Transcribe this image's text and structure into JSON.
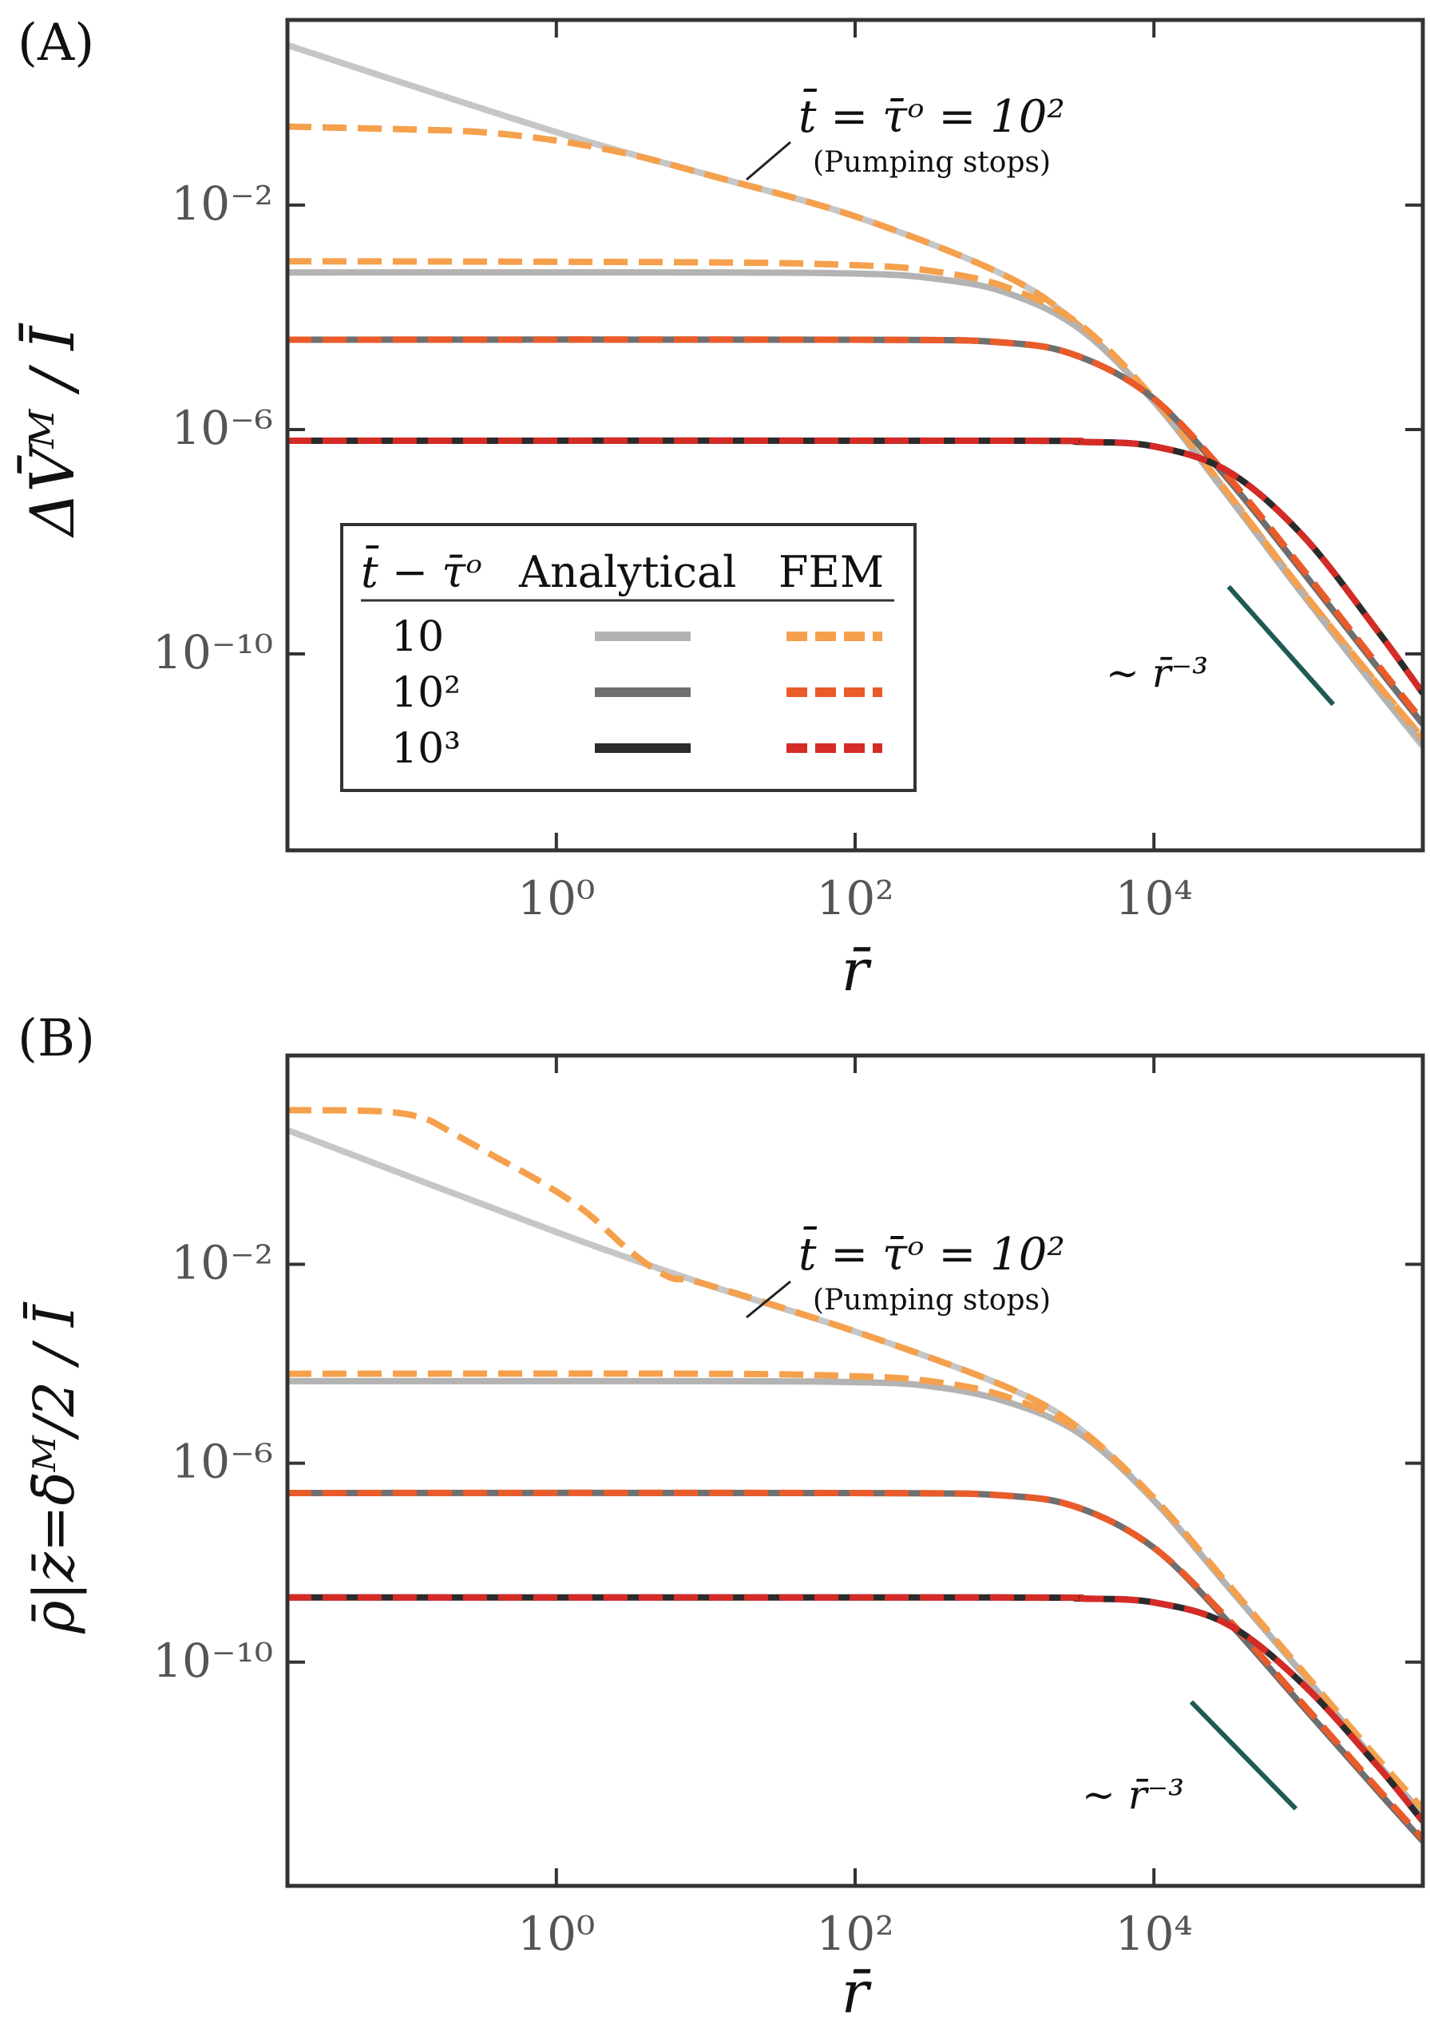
{
  "figure": {
    "panels": [
      {
        "id": "A",
        "label": "(A)"
      },
      {
        "id": "B",
        "label": "(B)"
      }
    ]
  },
  "chart_data": [
    {
      "id": "A",
      "type": "line",
      "title": "",
      "xlabel": "r̄",
      "ylabel": "ΔV̄ᴹ / Ī",
      "xscale": "log",
      "yscale": "log",
      "xlim_log10": [
        -1.8,
        5.8
      ],
      "ylim_log10": [
        -13.5,
        1.3
      ],
      "xticks": [
        {
          "value": 0,
          "label": "10⁰"
        },
        {
          "value": 2,
          "label": "10²"
        },
        {
          "value": 4,
          "label": "10⁴"
        }
      ],
      "yticks": [
        {
          "value": -2,
          "label": "10⁻²"
        },
        {
          "value": -6,
          "label": "10⁻⁶"
        },
        {
          "value": -10,
          "label": "10⁻¹⁰"
        }
      ],
      "annotation": {
        "main": "t̄ = τ̄ᵒ = 10²",
        "sub": "(Pumping stops)"
      },
      "slope": {
        "label": "∼ r̄⁻³",
        "x0": 4.5,
        "y0": -8.8,
        "x1": 5.2,
        "y1": -10.9
      },
      "legend": {
        "position": "lower-left",
        "headers": [
          "t̄ − τ̄ᵒ",
          "Analytical",
          "FEM"
        ],
        "rows": [
          {
            "label": "10",
            "analytical": "#b3b3b3",
            "fem": "#f5a04c"
          },
          {
            "label": "10²",
            "analytical": "#6f6f6f",
            "fem": "#ea5b2a"
          },
          {
            "label": "10³",
            "analytical": "#2b2b2b",
            "fem": "#d52b26"
          }
        ]
      },
      "series": [
        {
          "name": "Analytical, t̄ = τ̄ᵒ = 10²",
          "style": "solid",
          "color": "#c6c6c6",
          "x": [
            -1.8,
            0,
            1,
            2,
            3,
            3.5,
            4,
            4.5,
            5,
            5.5,
            5.8
          ],
          "y": [
            0.85,
            -0.7,
            -1.45,
            -2.2,
            -3.25,
            -4.15,
            -5.5,
            -7.2,
            -8.95,
            -10.65,
            -11.65
          ]
        },
        {
          "name": "FEM, t̄ = τ̄ᵒ = 10²",
          "style": "dashed",
          "color": "#f5a04c",
          "x": [
            -1.8,
            -1,
            -0.5,
            0,
            0.5,
            1,
            2,
            3,
            3.5,
            4,
            4.5,
            5,
            5.5,
            5.8
          ],
          "y": [
            -0.6,
            -0.65,
            -0.7,
            -0.85,
            -1.1,
            -1.45,
            -2.2,
            -3.25,
            -4.15,
            -5.5,
            -7.15,
            -8.9,
            -10.55,
            -11.5
          ]
        },
        {
          "name": "Analytical, t̄ − τ̄ᵒ = 10",
          "style": "solid",
          "color": "#b3b3b3",
          "x": [
            -1.8,
            1,
            2,
            2.5,
            3,
            3.5,
            4,
            4.5,
            5,
            5.5,
            5.8
          ],
          "y": [
            -3.2,
            -3.2,
            -3.22,
            -3.3,
            -3.55,
            -4.2,
            -5.5,
            -7.2,
            -8.95,
            -10.65,
            -11.6
          ]
        },
        {
          "name": "FEM, t̄ − τ̄ᵒ = 10",
          "style": "dashed",
          "color": "#f5a04c",
          "x": [
            -1.8,
            1,
            2,
            2.5,
            3,
            3.5,
            4,
            4.5,
            5,
            5.5,
            5.8
          ],
          "y": [
            -3.0,
            -3.02,
            -3.07,
            -3.17,
            -3.45,
            -4.12,
            -5.45,
            -7.15,
            -8.9,
            -10.55,
            -11.5
          ]
        },
        {
          "name": "Analytical, t̄ − τ̄ᵒ = 10²",
          "style": "solid",
          "color": "#6f6f6f",
          "x": [
            -1.8,
            2,
            3,
            3.5,
            4,
            4.5,
            5,
            5.5,
            5.8
          ],
          "y": [
            -4.4,
            -4.4,
            -4.45,
            -4.7,
            -5.45,
            -6.9,
            -8.55,
            -10.25,
            -11.25
          ]
        },
        {
          "name": "FEM, t̄ − τ̄ᵒ = 10²",
          "style": "dashed",
          "color": "#ea5b2a",
          "x": [
            -1.8,
            2,
            3,
            3.5,
            4,
            4.5,
            5,
            5.5,
            5.8
          ],
          "y": [
            -4.4,
            -4.4,
            -4.45,
            -4.7,
            -5.45,
            -6.85,
            -8.5,
            -10.2,
            -11.2
          ]
        },
        {
          "name": "Analytical, t̄ − τ̄ᵒ = 10³",
          "style": "solid",
          "color": "#2b2b2b",
          "x": [
            -1.8,
            3,
            3.5,
            4,
            4.5,
            5,
            5.5,
            5.8
          ],
          "y": [
            -6.2,
            -6.2,
            -6.22,
            -6.3,
            -6.75,
            -7.9,
            -9.6,
            -10.7
          ]
        },
        {
          "name": "FEM, t̄ − τ̄ᵒ = 10³",
          "style": "dashed",
          "color": "#d52b26",
          "x": [
            -1.8,
            3,
            3.5,
            4,
            4.5,
            5,
            5.5,
            5.8
          ],
          "y": [
            -6.2,
            -6.2,
            -6.22,
            -6.3,
            -6.75,
            -7.9,
            -9.6,
            -10.7
          ]
        }
      ]
    },
    {
      "id": "B",
      "type": "line",
      "title": "",
      "xlabel": "r̄",
      "ylabel": "ρ̄|z̄=δ̄ᴹ/2 / Ī",
      "xscale": "log",
      "yscale": "log",
      "xlim_log10": [
        -1.8,
        5.8
      ],
      "ylim_log10": [
        -14.5,
        2.2
      ],
      "xticks": [
        {
          "value": 0,
          "label": "10⁰"
        },
        {
          "value": 2,
          "label": "10²"
        },
        {
          "value": 4,
          "label": "10⁴"
        }
      ],
      "yticks": [
        {
          "value": -2,
          "label": "10⁻²"
        },
        {
          "value": -6,
          "label": "10⁻⁶"
        },
        {
          "value": -10,
          "label": "10⁻¹⁰"
        }
      ],
      "annotation": {
        "main": "t̄ = τ̄ᵒ = 10²",
        "sub": "(Pumping stops)"
      },
      "slope": {
        "label": "∼ r̄⁻³",
        "x0": 4.25,
        "y0": -10.8,
        "x1": 4.95,
        "y1": -12.95
      },
      "series": [
        {
          "name": "Analytical, t̄ = τ̄ᵒ = 10²",
          "style": "solid",
          "color": "#c6c6c6",
          "x": [
            -1.8,
            0,
            1,
            2,
            3,
            3.5,
            4,
            4.5,
            5,
            5.5,
            5.8
          ],
          "y": [
            0.7,
            -1.35,
            -2.4,
            -3.35,
            -4.45,
            -5.3,
            -6.75,
            -8.5,
            -10.25,
            -12.05,
            -13.1
          ]
        },
        {
          "name": "FEM, t̄ = τ̄ᵒ = 10²",
          "style": "dashed",
          "color": "#f5a04c",
          "x": [
            -1.8,
            -1.2,
            -0.9,
            -0.7,
            -0.4,
            -0.1,
            0.2,
            0.5,
            0.75,
            1,
            2,
            3,
            3.5,
            4,
            4.5,
            5,
            5.5,
            5.8
          ],
          "y": [
            1.1,
            1.08,
            0.95,
            0.65,
            0.15,
            -0.35,
            -0.95,
            -1.75,
            -2.25,
            -2.4,
            -3.35,
            -4.45,
            -5.3,
            -6.7,
            -8.45,
            -10.2,
            -11.95,
            -12.95
          ]
        },
        {
          "name": "Analytical, t̄ − τ̄ᵒ = 10",
          "style": "solid",
          "color": "#b3b3b3",
          "x": [
            -1.8,
            1,
            2,
            2.5,
            3,
            3.5,
            4,
            4.5,
            5,
            5.5,
            5.8
          ],
          "y": [
            -4.35,
            -4.35,
            -4.37,
            -4.45,
            -4.75,
            -5.4,
            -6.75,
            -8.5,
            -10.25,
            -12.05,
            -13.05
          ]
        },
        {
          "name": "FEM, t̄ − τ̄ᵒ = 10",
          "style": "dashed",
          "color": "#f5a04c",
          "x": [
            -1.8,
            1,
            2,
            2.5,
            3,
            3.5,
            4,
            4.5,
            5,
            5.5,
            5.8
          ],
          "y": [
            -4.2,
            -4.2,
            -4.25,
            -4.35,
            -4.65,
            -5.35,
            -6.7,
            -8.45,
            -10.2,
            -11.95,
            -12.95
          ]
        },
        {
          "name": "Analytical, t̄ − τ̄ᵒ = 10²",
          "style": "solid",
          "color": "#6f6f6f",
          "x": [
            -1.8,
            2,
            3,
            3.5,
            4,
            4.5,
            5,
            5.5,
            5.8
          ],
          "y": [
            -6.6,
            -6.6,
            -6.65,
            -6.9,
            -7.7,
            -9.2,
            -10.9,
            -12.6,
            -13.6
          ]
        },
        {
          "name": "FEM, t̄ − τ̄ᵒ = 10²",
          "style": "dashed",
          "color": "#ea5b2a",
          "x": [
            -1.8,
            2,
            3,
            3.5,
            4,
            4.5,
            5,
            5.5,
            5.8
          ],
          "y": [
            -6.6,
            -6.6,
            -6.65,
            -6.9,
            -7.7,
            -9.15,
            -10.85,
            -12.55,
            -13.55
          ]
        },
        {
          "name": "Analytical, t̄ − τ̄ᵒ = 10³",
          "style": "solid",
          "color": "#2b2b2b",
          "x": [
            -1.8,
            3,
            3.5,
            4,
            4.5,
            5,
            5.5,
            5.8
          ],
          "y": [
            -8.7,
            -8.7,
            -8.72,
            -8.8,
            -9.25,
            -10.45,
            -12.1,
            -13.2
          ]
        },
        {
          "name": "FEM, t̄ − τ̄ᵒ = 10³",
          "style": "dashed",
          "color": "#d52b26",
          "x": [
            -1.8,
            3,
            3.5,
            4,
            4.5,
            5,
            5.5,
            5.8
          ],
          "y": [
            -8.7,
            -8.7,
            -8.72,
            -8.8,
            -9.25,
            -10.45,
            -12.1,
            -13.2
          ]
        }
      ]
    }
  ]
}
